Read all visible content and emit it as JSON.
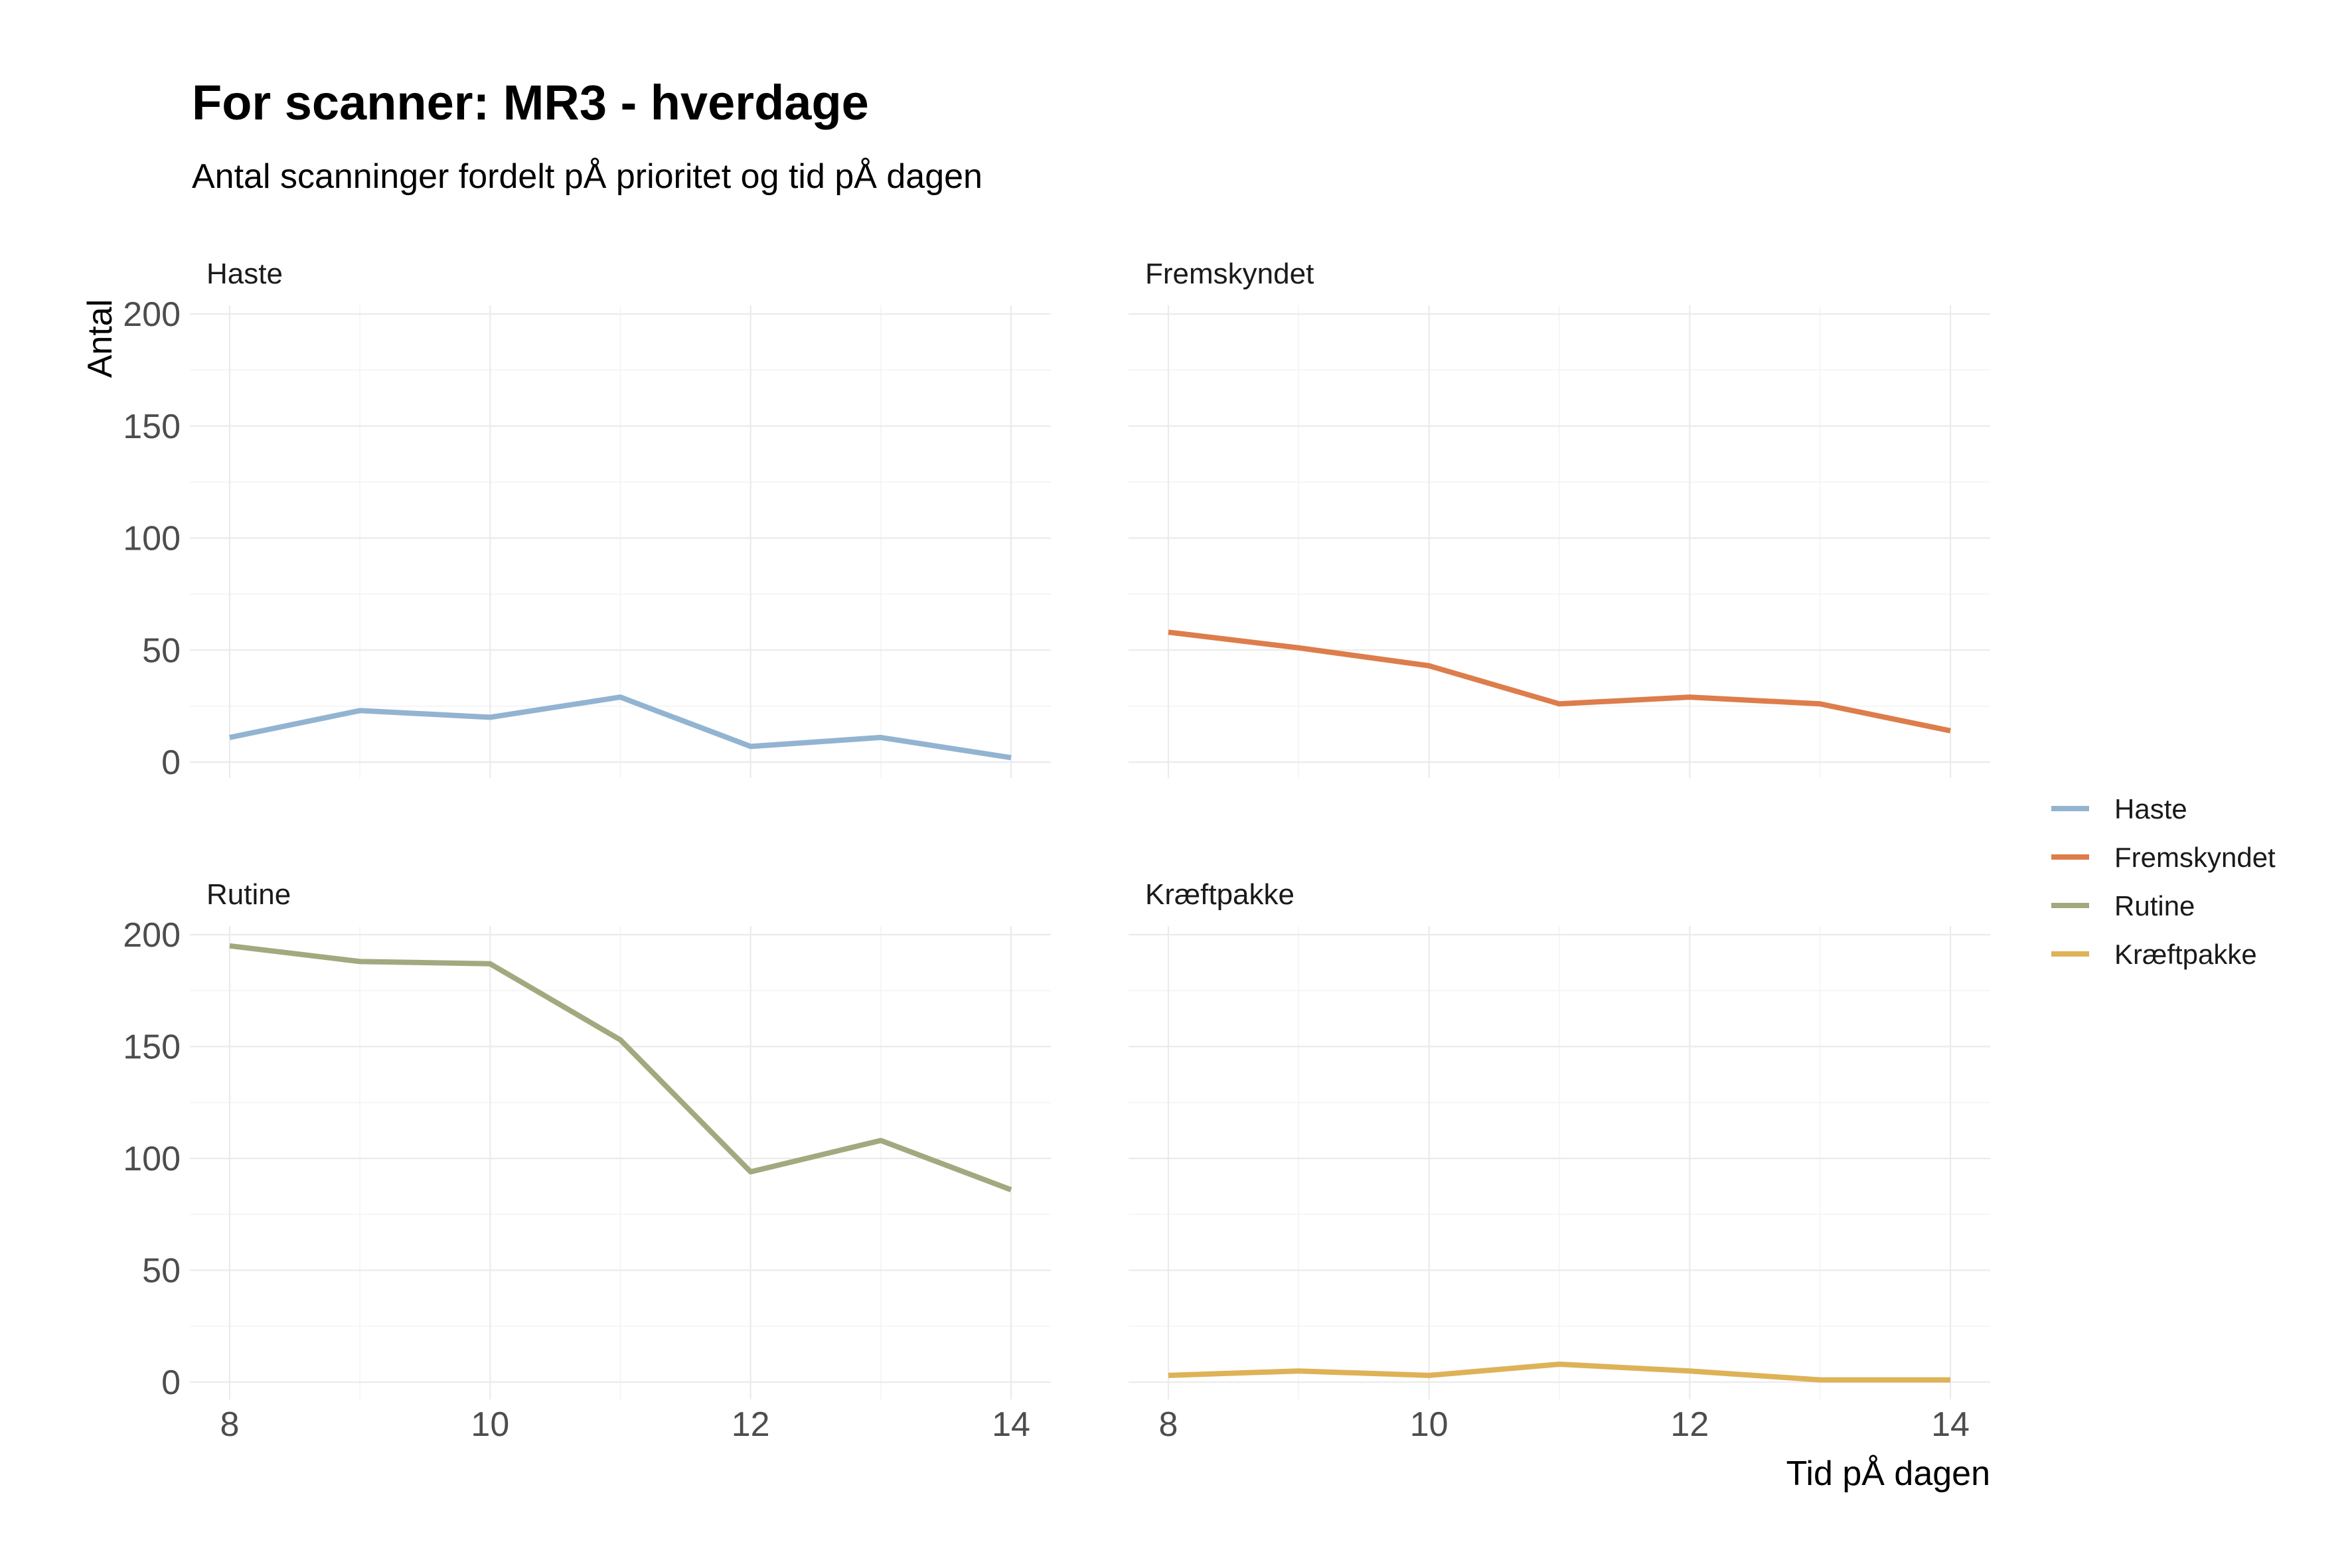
{
  "chart_data": {
    "type": "line",
    "title": "For scanner: MR3 - hverdage",
    "subtitle": "Antal scanninger fordelt pÅ prioritet og tid pÅ dagen",
    "xlabel": "Tid pÅ dagen",
    "ylabel": "Antal",
    "xlim": [
      8,
      14
    ],
    "ylim": [
      0,
      200
    ],
    "x_ticks": [
      8,
      10,
      12,
      14
    ],
    "y_ticks": [
      0,
      50,
      100,
      150,
      200
    ],
    "grid": true,
    "legend_position": "right",
    "x": [
      8,
      9,
      10,
      11,
      12,
      13,
      14
    ],
    "series": [
      {
        "name": "Haste",
        "color": "#92B4D1",
        "values": [
          11,
          23,
          20,
          29,
          7,
          11,
          2
        ]
      },
      {
        "name": "Fremskyndet",
        "color": "#DD7D4B",
        "values": [
          58,
          51,
          43,
          26,
          29,
          26,
          14
        ]
      },
      {
        "name": "Rutine",
        "color": "#A1A97F",
        "values": [
          195,
          188,
          187,
          153,
          94,
          108,
          86
        ]
      },
      {
        "name": "Kræftpakke",
        "color": "#DEB257",
        "values": [
          3,
          5,
          3,
          8,
          5,
          1,
          1
        ]
      }
    ]
  }
}
